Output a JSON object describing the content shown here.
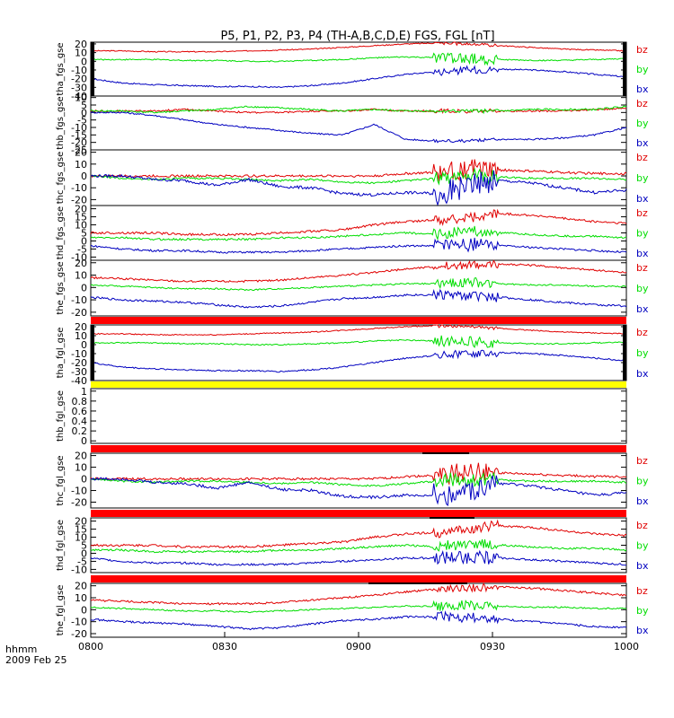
{
  "title": "P5, P1, P2, P3, P4 (TH-A,B,C,D,E) FGS, FGL [nT]",
  "footer": {
    "time_label": "hhmm",
    "date_label": "2009 Feb 25"
  },
  "colors": {
    "bz": "#e00000",
    "by": "#00dd00",
    "bx": "#0000c0",
    "bar_red": "#ff0000",
    "bar_yellow": "#ffff00"
  },
  "chart_data": [
    {
      "type": "line",
      "ylabel": "tha_fgs_gse",
      "ylim": [
        -40,
        22
      ],
      "yticks": [
        20,
        10,
        0,
        -10,
        -20,
        -30,
        -40
      ],
      "series": [
        {
          "name": "bz",
          "values": [
            12,
            12,
            11,
            11,
            11,
            12,
            13,
            14,
            16,
            18,
            20,
            21,
            20,
            18,
            16,
            14,
            13,
            12
          ],
          "noise": 0.6,
          "burst": 1.5
        },
        {
          "name": "by",
          "values": [
            2,
            2,
            2,
            1,
            1,
            0,
            0,
            1,
            2,
            4,
            5,
            4,
            3,
            2,
            1,
            1,
            2,
            3
          ],
          "noise": 0.7,
          "burst": 6
        },
        {
          "name": "bx",
          "values": [
            -20,
            -25,
            -27,
            -28,
            -29,
            -29,
            -30,
            -28,
            -25,
            -20,
            -15,
            -12,
            -10,
            -9,
            -10,
            -12,
            -15,
            -18
          ],
          "noise": 0.8,
          "burst": 4
        }
      ]
    },
    {
      "type": "line",
      "ylabel": "thb_fgs_gse",
      "ylim": [
        -25,
        11
      ],
      "yticks": [
        10,
        5,
        0,
        -5,
        -10,
        -15,
        -20,
        -25
      ],
      "series": [
        {
          "name": "bz",
          "values": [
            1,
            1,
            1,
            2,
            1,
            0,
            0,
            1,
            1,
            2,
            1,
            1,
            1,
            1,
            1,
            1,
            2,
            3
          ],
          "noise": 0.6,
          "burst": 1
        },
        {
          "name": "by",
          "values": [
            1,
            1,
            0,
            1,
            2,
            4,
            3,
            2,
            1,
            2,
            1,
            1,
            1,
            1,
            2,
            2,
            2,
            4
          ],
          "noise": 0.6,
          "burst": 1
        },
        {
          "name": "bx",
          "values": [
            0,
            0,
            -2,
            -5,
            -8,
            -10,
            -12,
            -14,
            -15,
            -8,
            -18,
            -19,
            -19,
            -18,
            -18,
            -17,
            -15,
            -10
          ],
          "noise": 0.5,
          "burst": 1
        }
      ]
    },
    {
      "type": "line",
      "ylabel": "thc_fgs_gse",
      "ylim": [
        -25,
        22
      ],
      "yticks": [
        20,
        10,
        0,
        -10,
        -20
      ],
      "series": [
        {
          "name": "bz",
          "values": [
            0,
            0,
            0,
            0,
            0,
            0,
            0,
            0,
            0,
            0,
            2,
            3,
            6,
            5,
            4,
            3,
            2,
            2
          ],
          "noise": 1,
          "burst": 8
        },
        {
          "name": "by",
          "values": [
            0,
            -2,
            -3,
            -2,
            -2,
            -3,
            -4,
            -3,
            -5,
            -6,
            -4,
            -2,
            0,
            -1,
            -2,
            -2,
            -2,
            -3
          ],
          "noise": 0.8,
          "burst": 6
        },
        {
          "name": "bx",
          "values": [
            0,
            0,
            -3,
            -4,
            -8,
            -3,
            -9,
            -10,
            -15,
            -16,
            -14,
            -15,
            -8,
            -4,
            -6,
            -10,
            -14,
            -12
          ],
          "noise": 1.2,
          "burst": 10
        }
      ]
    },
    {
      "type": "line",
      "ylabel": "thd_fgs_gse",
      "ylim": [
        -12,
        22
      ],
      "yticks": [
        20,
        15,
        10,
        5,
        0,
        -5,
        -10
      ],
      "series": [
        {
          "name": "bz",
          "values": [
            5,
            5,
            5,
            4,
            4,
            4,
            5,
            6,
            7,
            10,
            12,
            13,
            15,
            17,
            16,
            14,
            12,
            11
          ],
          "noise": 0.7,
          "burst": 3
        },
        {
          "name": "by",
          "values": [
            2,
            2,
            1,
            1,
            1,
            1,
            2,
            2,
            3,
            4,
            5,
            4,
            6,
            5,
            4,
            3,
            3,
            2
          ],
          "noise": 0.6,
          "burst": 3
        },
        {
          "name": "bx",
          "values": [
            -3,
            -5,
            -6,
            -6,
            -7,
            -7,
            -7,
            -6,
            -5,
            -4,
            -3,
            -3,
            -2,
            -3,
            -4,
            -5,
            -6,
            -7
          ],
          "noise": 0.6,
          "burst": 4
        }
      ]
    },
    {
      "type": "line",
      "ylabel": "the_fgs_gse",
      "ylim": [
        -23,
        22
      ],
      "yticks": [
        20,
        10,
        0,
        -10,
        -20
      ],
      "series": [
        {
          "name": "bz",
          "values": [
            8,
            7,
            6,
            5,
            5,
            5,
            6,
            8,
            10,
            12,
            15,
            17,
            18,
            19,
            18,
            16,
            14,
            12
          ],
          "noise": 0.8,
          "burst": 3
        },
        {
          "name": "by",
          "values": [
            2,
            1,
            0,
            -1,
            -1,
            -2,
            -1,
            0,
            1,
            2,
            3,
            3,
            4,
            3,
            2,
            2,
            1,
            1
          ],
          "noise": 0.6,
          "burst": 4
        },
        {
          "name": "bx",
          "values": [
            -8,
            -10,
            -11,
            -12,
            -14,
            -16,
            -15,
            -12,
            -9,
            -8,
            -6,
            -6,
            -7,
            -8,
            -10,
            -12,
            -14,
            -15
          ],
          "noise": 0.8,
          "burst": 4
        }
      ]
    },
    {
      "type": "line",
      "ylabel": "tha_fgl_gse",
      "ylim": [
        -40,
        22
      ],
      "yticks": [
        20,
        10,
        0,
        -10,
        -20,
        -30,
        -40
      ],
      "series": [
        {
          "name": "bz",
          "values": [
            12,
            12,
            11,
            11,
            11,
            12,
            13,
            14,
            16,
            18,
            20,
            21,
            20,
            18,
            16,
            14,
            13,
            12
          ],
          "noise": 0.6,
          "burst": 1.5
        },
        {
          "name": "by",
          "values": [
            2,
            2,
            2,
            1,
            1,
            0,
            0,
            1,
            2,
            4,
            5,
            4,
            3,
            2,
            1,
            1,
            2,
            3
          ],
          "noise": 0.7,
          "burst": 6
        },
        {
          "name": "bx",
          "values": [
            -20,
            -25,
            -27,
            -28,
            -29,
            -29,
            -30,
            -28,
            -25,
            -20,
            -15,
            -12,
            -10,
            -9,
            -10,
            -12,
            -15,
            -18
          ],
          "noise": 0.8,
          "burst": 4
        }
      ]
    },
    {
      "type": "line",
      "ylabel": "thb_fgl_gse",
      "ylim": [
        -0.05,
        1.05
      ],
      "yticks": [
        1.0,
        0.8,
        0.6,
        0.4,
        0.2,
        0.0
      ],
      "series": []
    },
    {
      "type": "line",
      "ylabel": "thc_fgl_gse",
      "ylim": [
        -25,
        22
      ],
      "yticks": [
        20,
        10,
        0,
        -10,
        -20
      ],
      "series": [
        {
          "name": "bz",
          "values": [
            0,
            0,
            0,
            0,
            0,
            0,
            0,
            0,
            0,
            0,
            2,
            3,
            6,
            5,
            4,
            3,
            2,
            2
          ],
          "noise": 1,
          "burst": 8
        },
        {
          "name": "by",
          "values": [
            0,
            -2,
            -3,
            -2,
            -2,
            -3,
            -4,
            -3,
            -5,
            -6,
            -4,
            -2,
            0,
            -1,
            -2,
            -2,
            -2,
            -3
          ],
          "noise": 0.8,
          "burst": 6
        },
        {
          "name": "bx",
          "values": [
            0,
            0,
            -3,
            -4,
            -8,
            -3,
            -9,
            -10,
            -15,
            -16,
            -14,
            -15,
            -8,
            -4,
            -6,
            -10,
            -14,
            -12
          ],
          "noise": 1.2,
          "burst": 10
        }
      ]
    },
    {
      "type": "line",
      "ylabel": "thd_fgl_gse",
      "ylim": [
        -12,
        22
      ],
      "yticks": [
        20,
        15,
        10,
        5,
        0,
        -5,
        -10
      ],
      "series": [
        {
          "name": "bz",
          "values": [
            5,
            5,
            5,
            4,
            4,
            4,
            5,
            6,
            7,
            10,
            12,
            13,
            15,
            17,
            16,
            14,
            12,
            11
          ],
          "noise": 0.7,
          "burst": 3
        },
        {
          "name": "by",
          "values": [
            2,
            2,
            1,
            1,
            1,
            1,
            2,
            2,
            3,
            4,
            5,
            4,
            6,
            5,
            4,
            3,
            3,
            2
          ],
          "noise": 0.6,
          "burst": 3
        },
        {
          "name": "bx",
          "values": [
            -3,
            -5,
            -6,
            -6,
            -7,
            -7,
            -7,
            -6,
            -5,
            -4,
            -3,
            -3,
            -2,
            -3,
            -4,
            -5,
            -6,
            -7
          ],
          "noise": 0.6,
          "burst": 4
        }
      ]
    },
    {
      "type": "line",
      "ylabel": "the_fgl_gse",
      "ylim": [
        -23,
        22
      ],
      "yticks": [
        20,
        10,
        0,
        -10,
        -20
      ],
      "series": [
        {
          "name": "bz",
          "values": [
            8,
            7,
            6,
            5,
            5,
            5,
            6,
            8,
            10,
            12,
            15,
            17,
            18,
            19,
            18,
            16,
            14,
            12
          ],
          "noise": 0.8,
          "burst": 3
        },
        {
          "name": "by",
          "values": [
            2,
            1,
            0,
            -1,
            -1,
            -2,
            -1,
            0,
            1,
            2,
            3,
            3,
            4,
            3,
            2,
            2,
            1,
            1
          ],
          "noise": 0.6,
          "burst": 4
        },
        {
          "name": "bx",
          "values": [
            -8,
            -10,
            -11,
            -12,
            -14,
            -16,
            -15,
            -12,
            -9,
            -8,
            -6,
            -6,
            -7,
            -8,
            -10,
            -12,
            -14,
            -15
          ],
          "noise": 0.8,
          "burst": 4
        }
      ]
    }
  ],
  "xaxis": {
    "ticks": [
      "0800",
      "0830",
      "0900",
      "0930",
      "1000"
    ]
  }
}
